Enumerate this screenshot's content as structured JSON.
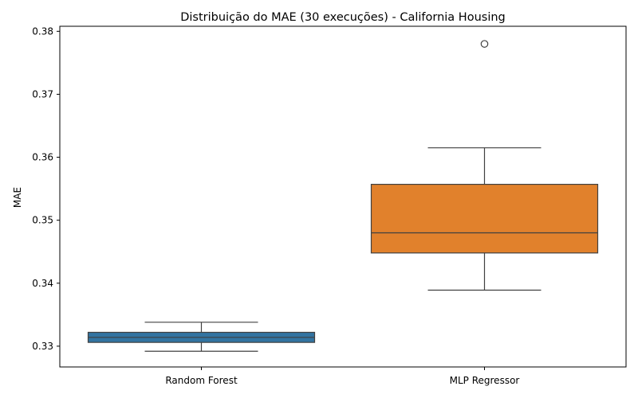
{
  "chart_data": {
    "type": "box",
    "title": "Distribuição do MAE (30 execuções) - California Housing",
    "xlabel": "",
    "ylabel": "MAE",
    "ylim": [
      0.3267,
      0.3808
    ],
    "yticks": [
      0.33,
      0.34,
      0.35,
      0.36,
      0.37,
      0.38
    ],
    "ytick_labels": [
      "0.33",
      "0.34",
      "0.35",
      "0.36",
      "0.37",
      "0.38"
    ],
    "grid": false,
    "categories": [
      "Random Forest",
      "MLP Regressor"
    ],
    "boxes": [
      {
        "category": "Random Forest",
        "color": "#3274a1",
        "whisker_low": 0.3292,
        "q1": 0.3306,
        "median": 0.3314,
        "q3": 0.3322,
        "whisker_high": 0.3338,
        "outliers": []
      },
      {
        "category": "MLP Regressor",
        "color": "#e1812c",
        "whisker_low": 0.3389,
        "q1": 0.3448,
        "median": 0.348,
        "q3": 0.3557,
        "whisker_high": 0.3615,
        "outliers": [
          0.378
        ]
      }
    ]
  }
}
